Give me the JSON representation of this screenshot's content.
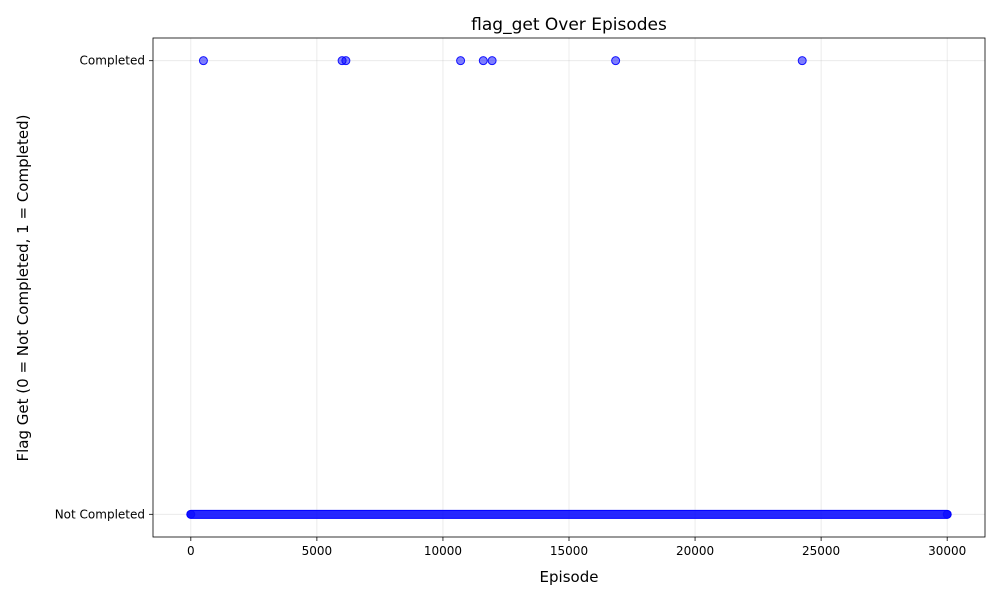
{
  "chart_data": {
    "type": "scatter",
    "title": "flag_get Over Episodes",
    "xlabel": "Episode",
    "ylabel": "Flag Get (0 = Not Completed, 1 = Completed)",
    "xlim": [
      -1500,
      31500
    ],
    "ylim": [
      -0.05,
      1.05
    ],
    "xticks": [
      0,
      5000,
      10000,
      15000,
      20000,
      25000,
      30000
    ],
    "xtick_labels": [
      "0",
      "5000",
      "10000",
      "15000",
      "20000",
      "25000",
      "30000"
    ],
    "yticks": [
      0,
      1
    ],
    "ytick_labels": [
      "Not Completed",
      "Completed"
    ],
    "grid": true,
    "marker_color": "#0000ff",
    "marker_alpha": 0.5,
    "completed_episodes": [
      500,
      6000,
      6150,
      10700,
      11600,
      11950,
      16850,
      24250
    ],
    "not_completed_episode_range": [
      0,
      30000
    ],
    "not_completed_value": 0,
    "completed_value": 1
  }
}
